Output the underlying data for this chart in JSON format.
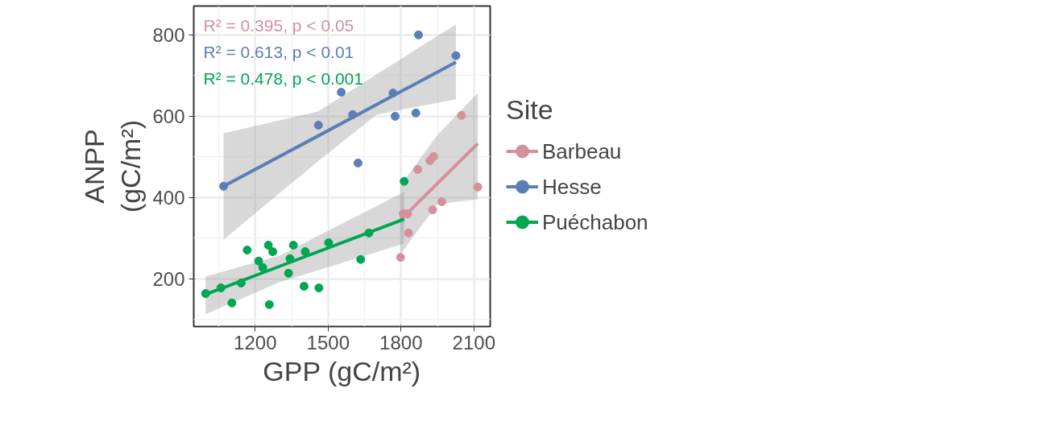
{
  "chart_data": {
    "type": "scatter",
    "xlabel": "GPP (gC/m²)",
    "ylabel": "ANPP (gC/m²)",
    "legend_title": "Site",
    "xlim": [
      947,
      2167
    ],
    "ylim": [
      83,
      871
    ],
    "xticks": [
      1200,
      1500,
      1800,
      2100
    ],
    "yticks": [
      200,
      400,
      600,
      800
    ],
    "grid": true,
    "legend": "right",
    "marker": "circle",
    "annotations": [
      "R² = 0.395, p < 0.05",
      "R² = 0.613, p < 0.01",
      "R² = 0.478, p < 0.001"
    ],
    "series": [
      {
        "name": "Barbeau",
        "color": "#d4919c",
        "x": [
          2049,
          1869,
          1919,
          1934,
          1809,
          1827,
          1831,
          1798,
          1930,
          1968,
          2116
        ],
        "values": [
          602,
          469,
          491,
          501,
          360,
          360,
          313,
          253,
          370,
          390,
          426
        ]
      },
      {
        "name": "Hesse",
        "color": "#5b7fb5",
        "x": [
          1872,
          2026,
          1554,
          1601,
          1767,
          1776,
          1861,
          1623,
          1460,
          1070
        ],
        "values": [
          800,
          749,
          659,
          604,
          657,
          600,
          608,
          485,
          578,
          428
        ]
      },
      {
        "name": "Puéchabon",
        "color": "#00a651",
        "x": [
          996,
          1059,
          1104,
          1142,
          1167,
          1214,
          1231,
          1254,
          1258,
          1272,
          1337,
          1343,
          1357,
          1401,
          1406,
          1462,
          1502,
          1634,
          1668,
          1813
        ],
        "values": [
          164,
          178,
          141,
          190,
          271,
          244,
          228,
          283,
          137,
          267,
          214,
          250,
          283,
          182,
          267,
          178,
          289,
          248,
          313,
          440
        ]
      },
      {
        "type": "line",
        "marker": "none",
        "color": "#d4919c",
        "x": [
          1798,
          1950,
          2116
        ],
        "values": [
          345,
          435,
          533
        ],
        "lower": [
          261,
          384,
          396
        ],
        "upper": [
          430,
          554,
          657
        ]
      },
      {
        "type": "line",
        "marker": "none",
        "color": "#5b7fb5",
        "x": [
          1070,
          1460,
          1700,
          2026
        ],
        "values": [
          428,
          552,
          629,
          733
        ],
        "lower": [
          297,
          490,
          604,
          642
        ],
        "upper": [
          558,
          612,
          703,
          826
        ]
      },
      {
        "type": "line",
        "marker": "none",
        "color": "#00a651",
        "x": [
          996,
          1300,
          1813
        ],
        "values": [
          162,
          231,
          347
        ],
        "lower": [
          113,
          192,
          287
        ],
        "upper": [
          206,
          257,
          414
        ]
      }
    ]
  }
}
